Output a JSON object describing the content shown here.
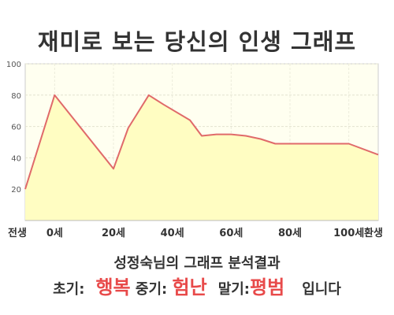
{
  "title": "재미로 보는 당신의 인생 그래프",
  "subtitle": "성정숙님의 그래프 분석결과",
  "summary": {
    "early_label": "초기:",
    "early_value": "행복",
    "mid_label": "중기:",
    "mid_value": "험난",
    "late_label": "말기:",
    "late_value": "평범",
    "ending": "입니다"
  },
  "colors": {
    "line": "#e06a6a",
    "fill": "#fffdc2",
    "plot_bg": "#fffff0",
    "highlight": "#e84a4a"
  },
  "chart_data": {
    "type": "area",
    "title": "재미로 보는 당신의 인생 그래프",
    "xlabel": "",
    "ylabel": "",
    "ylim": [
      0,
      100
    ],
    "xlim": [
      -10,
      110
    ],
    "yticks": [
      20,
      40,
      60,
      80,
      100
    ],
    "xticks": [
      {
        "value": -10,
        "label": "전생"
      },
      {
        "value": 0,
        "label": "0세"
      },
      {
        "value": 20,
        "label": "20세"
      },
      {
        "value": 40,
        "label": "40세"
      },
      {
        "value": 60,
        "label": "60세"
      },
      {
        "value": 80,
        "label": "80세"
      },
      {
        "value": 100,
        "label": "100세"
      },
      {
        "value": 110,
        "label": "환생"
      }
    ],
    "grid": true,
    "legend": "none",
    "x": [
      -10,
      0,
      20,
      25,
      32,
      37,
      46,
      50,
      55,
      60,
      65,
      70,
      75,
      80,
      100,
      110
    ],
    "series": [
      {
        "values": [
          20,
          80,
          33,
          59,
          80,
          74,
          64,
          54,
          55,
          55,
          54,
          52,
          49,
          49,
          49,
          42
        ]
      }
    ]
  }
}
